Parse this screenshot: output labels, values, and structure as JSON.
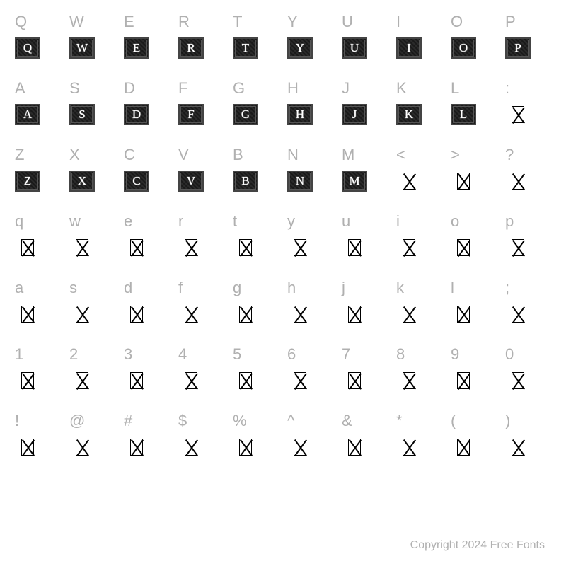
{
  "rows": [
    {
      "labels": [
        "Q",
        "W",
        "E",
        "R",
        "T",
        "Y",
        "U",
        "I",
        "O",
        "P"
      ],
      "glyphType": "cap",
      "glyphs": [
        "Q",
        "W",
        "E",
        "R",
        "T",
        "Y",
        "U",
        "I",
        "O",
        "P"
      ]
    },
    {
      "labels": [
        "A",
        "S",
        "D",
        "F",
        "G",
        "H",
        "J",
        "K",
        "L",
        ":"
      ],
      "glyphType": "mixed",
      "glyphs": [
        "A",
        "S",
        "D",
        "F",
        "G",
        "H",
        "J",
        "K",
        "L",
        null
      ]
    },
    {
      "labels": [
        "Z",
        "X",
        "C",
        "V",
        "B",
        "N",
        "M",
        "<",
        ">",
        "?"
      ],
      "glyphType": "mixed",
      "glyphs": [
        "Z",
        "X",
        "C",
        "V",
        "B",
        "N",
        "M",
        null,
        null,
        null
      ]
    },
    {
      "labels": [
        "q",
        "w",
        "e",
        "r",
        "t",
        "y",
        "u",
        "i",
        "o",
        "p"
      ],
      "glyphType": "tofu",
      "glyphs": [
        null,
        null,
        null,
        null,
        null,
        null,
        null,
        null,
        null,
        null
      ]
    },
    {
      "labels": [
        "a",
        "s",
        "d",
        "f",
        "g",
        "h",
        "j",
        "k",
        "l",
        ";"
      ],
      "glyphType": "tofu",
      "glyphs": [
        null,
        null,
        null,
        null,
        null,
        null,
        null,
        null,
        null,
        null
      ]
    },
    {
      "labels": [
        "1",
        "2",
        "3",
        "4",
        "5",
        "6",
        "7",
        "8",
        "9",
        "0"
      ],
      "glyphType": "tofu",
      "glyphs": [
        null,
        null,
        null,
        null,
        null,
        null,
        null,
        null,
        null,
        null
      ]
    },
    {
      "labels": [
        "!",
        "@",
        "#",
        "$",
        "%",
        "^",
        "&",
        "*",
        "(",
        ")"
      ],
      "glyphType": "tofu",
      "glyphs": [
        null,
        null,
        null,
        null,
        null,
        null,
        null,
        null,
        null,
        null
      ]
    }
  ],
  "copyright": "Copyright 2024 Free Fonts",
  "colors": {
    "labelColor": "#b0b0b0",
    "background": "#ffffff",
    "capBg": "#1a1a1a",
    "capText": "#ffffff",
    "tofuBorder": "#000000"
  },
  "labelFontSize": 22,
  "capFontSize": 17
}
